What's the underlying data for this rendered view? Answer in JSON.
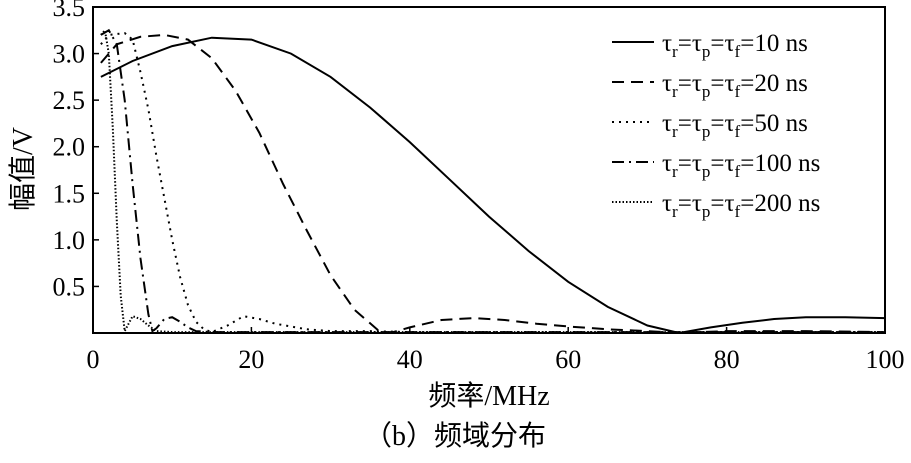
{
  "chart_data": {
    "type": "line",
    "xlabel": "频率/MHz",
    "ylabel": "幅值/V",
    "caption": "（b）频域分布",
    "xlim": [
      0,
      100
    ],
    "ylim": [
      0,
      3.5
    ],
    "xticks": [
      0,
      20,
      40,
      60,
      80,
      100
    ],
    "yticks": [
      0.5,
      {
        "value": 1,
        "label": "1.0"
      },
      1.5,
      {
        "value": 2,
        "label": "2.0"
      },
      2.5,
      {
        "value": 3,
        "label": "3.0"
      },
      3.5
    ],
    "legend": "upper right",
    "series": [
      {
        "name": "τr=τp=τf=10 ns",
        "color": "#000000",
        "dash": "solid",
        "x": [
          1,
          5,
          10,
          15,
          20,
          25,
          30,
          35,
          40,
          45,
          50,
          55,
          60,
          65,
          70,
          74,
          78,
          82,
          86,
          90,
          95,
          100
        ],
        "values": [
          2.75,
          2.92,
          3.08,
          3.17,
          3.15,
          3.0,
          2.75,
          2.42,
          2.05,
          1.65,
          1.25,
          0.88,
          0.55,
          0.28,
          0.08,
          0,
          0.06,
          0.11,
          0.15,
          0.17,
          0.17,
          0.16
        ]
      },
      {
        "name": "τr=τp=τf=20 ns",
        "color": "#000000",
        "dash": "dashed",
        "x": [
          1,
          3,
          6,
          9,
          12,
          15,
          18,
          21,
          24,
          27,
          30,
          33,
          36,
          37.5,
          40,
          44,
          48,
          52,
          56,
          60,
          65,
          70,
          74,
          80,
          90,
          100
        ],
        "values": [
          2.9,
          3.1,
          3.18,
          3.2,
          3.15,
          2.95,
          2.6,
          2.15,
          1.6,
          1.1,
          0.62,
          0.25,
          0.03,
          0,
          0.06,
          0.14,
          0.16,
          0.14,
          0.1,
          0.07,
          0.04,
          0.02,
          0,
          0.02,
          0.02,
          0.01
        ]
      },
      {
        "name": "τr=τp=τf=50 ns",
        "color": "#000000",
        "dash": "dotted",
        "x": [
          1,
          2,
          4,
          5,
          6,
          7,
          8,
          9,
          10,
          11,
          12,
          13,
          14,
          15,
          17,
          19,
          21,
          23,
          25,
          27,
          30,
          35,
          40,
          50,
          60,
          74,
          80,
          100
        ],
        "values": [
          3.1,
          3.2,
          3.22,
          3.15,
          2.8,
          2.4,
          1.9,
          1.45,
          1.0,
          0.6,
          0.3,
          0.12,
          0.04,
          0.01,
          0.08,
          0.18,
          0.15,
          0.1,
          0.07,
          0.04,
          0.02,
          0.02,
          0.01,
          0.01,
          0.01,
          0,
          0.01,
          0.01
        ]
      },
      {
        "name": "τr=τp=τf=100 ns",
        "color": "#000000",
        "dash": "dashdot",
        "x": [
          1,
          2,
          3,
          4,
          5,
          6,
          7,
          7.5,
          8,
          9,
          10,
          11,
          12,
          13,
          15,
          20,
          30,
          50,
          100
        ],
        "values": [
          3.2,
          3.25,
          3.1,
          2.5,
          1.6,
          0.8,
          0.2,
          0.02,
          0.05,
          0.15,
          0.17,
          0.12,
          0.06,
          0.02,
          0.01,
          0.01,
          0.01,
          0.01,
          0.01
        ]
      },
      {
        "name": "τr=τp=τf=200 ns",
        "color": "#000000",
        "dash": "densedot",
        "x": [
          1,
          1.5,
          2,
          2.5,
          3,
          3.5,
          4,
          4.5,
          5,
          6,
          7,
          8,
          10,
          20,
          50,
          100
        ],
        "values": [
          3.2,
          3.25,
          3.0,
          2.2,
          1.2,
          0.4,
          0.02,
          0.1,
          0.18,
          0.15,
          0.08,
          0.02,
          0.01,
          0.01,
          0.01,
          0.01
        ]
      }
    ]
  }
}
